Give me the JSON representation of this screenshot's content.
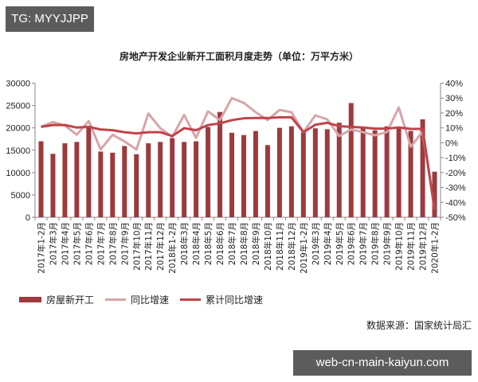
{
  "watermarks": {
    "top_left": "TG: MYYJJPP",
    "bottom_right": "web-cn-main-kaiyun.com"
  },
  "chart_data": {
    "type": "bar",
    "title": "房地产开发企业新开工面积月度走势（单位：万平方米）",
    "xlabel": "",
    "ylabel": "",
    "ylim": [
      0,
      30000
    ],
    "y2lim": [
      -50,
      40
    ],
    "yticks": [
      "0",
      "5000",
      "10000",
      "15000",
      "20000",
      "25000",
      "30000"
    ],
    "y2ticks": [
      "-50%",
      "-40%",
      "-30%",
      "-20%",
      "-10%",
      "0%",
      "10%",
      "20%",
      "30%",
      "40%"
    ],
    "grid": false,
    "legend_position": "bottom",
    "categories": [
      "2017年1-2月",
      "2017年3月",
      "2017年4月",
      "2017年5月",
      "2017年6月",
      "2017年7月",
      "2017年8月",
      "2017年9月",
      "2017年10月",
      "2017年11月",
      "2017年12月",
      "2018年1-2月",
      "2018年3月",
      "2018年4月",
      "2018年5月",
      "2018年6月",
      "2018年7月",
      "2018年8月",
      "2018年9月",
      "2018年10月",
      "2018年11月",
      "2018年12月",
      "2019年1-2月",
      "2019年3月",
      "2019年4月",
      "2019年5月",
      "2019年6月",
      "2019年7月",
      "2019年8月",
      "2019年9月",
      "2019年10月",
      "2019年11月",
      "2019年12月",
      "2020年1-2月"
    ],
    "series": [
      {
        "name": "房屋新开工",
        "type": "bar",
        "axis": "left",
        "color": "#9c3a3e",
        "values": [
          17000,
          14200,
          16550,
          16850,
          20000,
          14700,
          14450,
          15950,
          14100,
          16550,
          16850,
          17700,
          16850,
          17000,
          20200,
          23550,
          18900,
          18400,
          19300,
          16150,
          20000,
          20350,
          19000,
          19900,
          19700,
          21150,
          25550,
          20200,
          19450,
          20350,
          20050,
          19300,
          21900,
          10200
        ]
      },
      {
        "name": "同比增速",
        "type": "line",
        "axis": "right",
        "unit": "%",
        "color": "#d8a5a8",
        "values": [
          10.7,
          13.9,
          11.6,
          5.4,
          14.6,
          -4.5,
          5.4,
          0.9,
          -4.5,
          19.6,
          9.8,
          3.9,
          18.7,
          3.2,
          21.1,
          15.2,
          30.0,
          26.8,
          20.5,
          15.2,
          22.0,
          20.5,
          7.1,
          18.4,
          15.7,
          4.5,
          8.9,
          7.1,
          5.0,
          7.1,
          23.7,
          -2.7,
          7.5,
          -44.9
        ]
      },
      {
        "name": "累计同比增速",
        "type": "line",
        "axis": "right",
        "unit": "%",
        "color": "#c0444a",
        "values": [
          10.7,
          11.9,
          11.9,
          10.2,
          10.7,
          8.9,
          8.4,
          7.1,
          6.3,
          7.1,
          7.1,
          4.5,
          9.8,
          8.4,
          11.9,
          13.0,
          15.2,
          16.4,
          16.6,
          16.6,
          17.1,
          17.1,
          7.1,
          12.1,
          13.4,
          11.1,
          10.7,
          10.2,
          9.5,
          9.5,
          10.3,
          9.3,
          9.3,
          -44.9
        ]
      }
    ]
  },
  "legend": {
    "items": [
      "房屋新开工",
      "同比增速",
      "累计同比增速"
    ]
  },
  "source": "数据来源：国家统计局汇"
}
